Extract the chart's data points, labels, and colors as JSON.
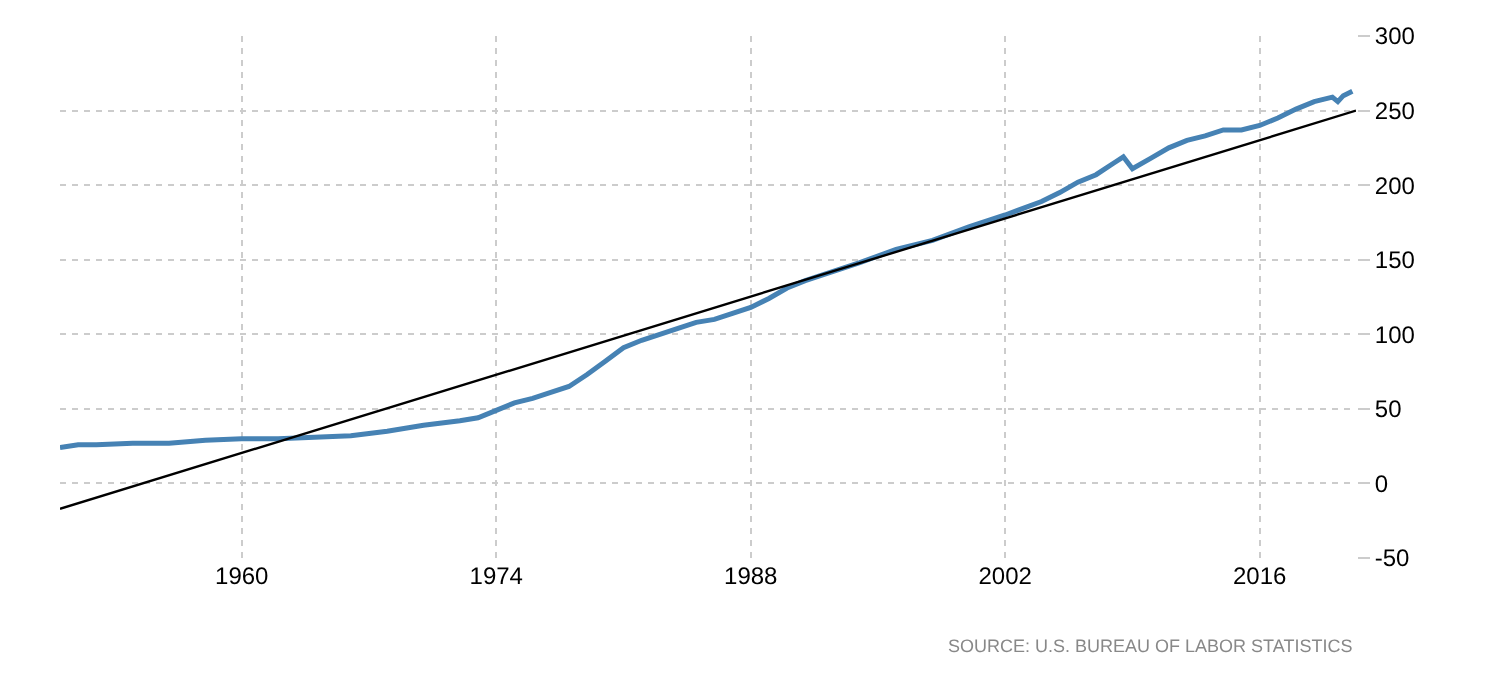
{
  "chart_data": {
    "type": "line",
    "xlim": [
      1950,
      2021.3
    ],
    "xticks": [
      1960,
      1974,
      1988,
      2002,
      2016
    ],
    "ylim": [
      -50,
      300
    ],
    "yticks": [
      -50,
      0,
      50,
      100,
      150,
      200,
      250,
      300
    ],
    "grid": true,
    "marker": "none",
    "line_style": "solid",
    "series": [
      {
        "color": "#4682b4",
        "x": [
          1950,
          1951,
          1952,
          1954,
          1956,
          1958,
          1960,
          1962,
          1964,
          1966,
          1968,
          1970,
          1972,
          1973,
          1974,
          1975,
          1976,
          1977,
          1978,
          1979,
          1980,
          1981,
          1982,
          1983,
          1984,
          1985,
          1986,
          1987,
          1988,
          1989,
          1990,
          1991,
          1992,
          1994,
          1996,
          1998,
          2000,
          2002,
          2004,
          2005,
          2006,
          2007,
          2008,
          2008.5,
          2009,
          2010,
          2011,
          2012,
          2013,
          2014,
          2015,
          2016,
          2017,
          2018,
          2019,
          2020,
          2020.3,
          2020.6,
          2021.1
        ],
        "values": [
          24,
          26,
          26,
          27,
          27,
          29,
          30,
          30,
          31,
          32,
          35,
          39,
          42,
          44,
          49,
          54,
          57,
          61,
          65,
          73,
          82,
          91,
          96,
          100,
          104,
          108,
          110,
          114,
          118,
          124,
          131,
          136,
          140,
          148,
          157,
          163,
          172,
          180,
          189,
          195,
          202,
          207,
          215,
          219,
          211,
          218,
          225,
          230,
          233,
          237,
          237,
          240,
          245,
          251,
          256,
          259,
          256,
          260,
          263
        ]
      },
      {
        "type": "line",
        "color": "#000000",
        "x": [
          1950,
          2021.3
        ],
        "values": [
          -17,
          250
        ]
      }
    ],
    "annotations": [
      "SOURCE: U.S. BUREAU OF LABOR STATISTICS"
    ]
  }
}
